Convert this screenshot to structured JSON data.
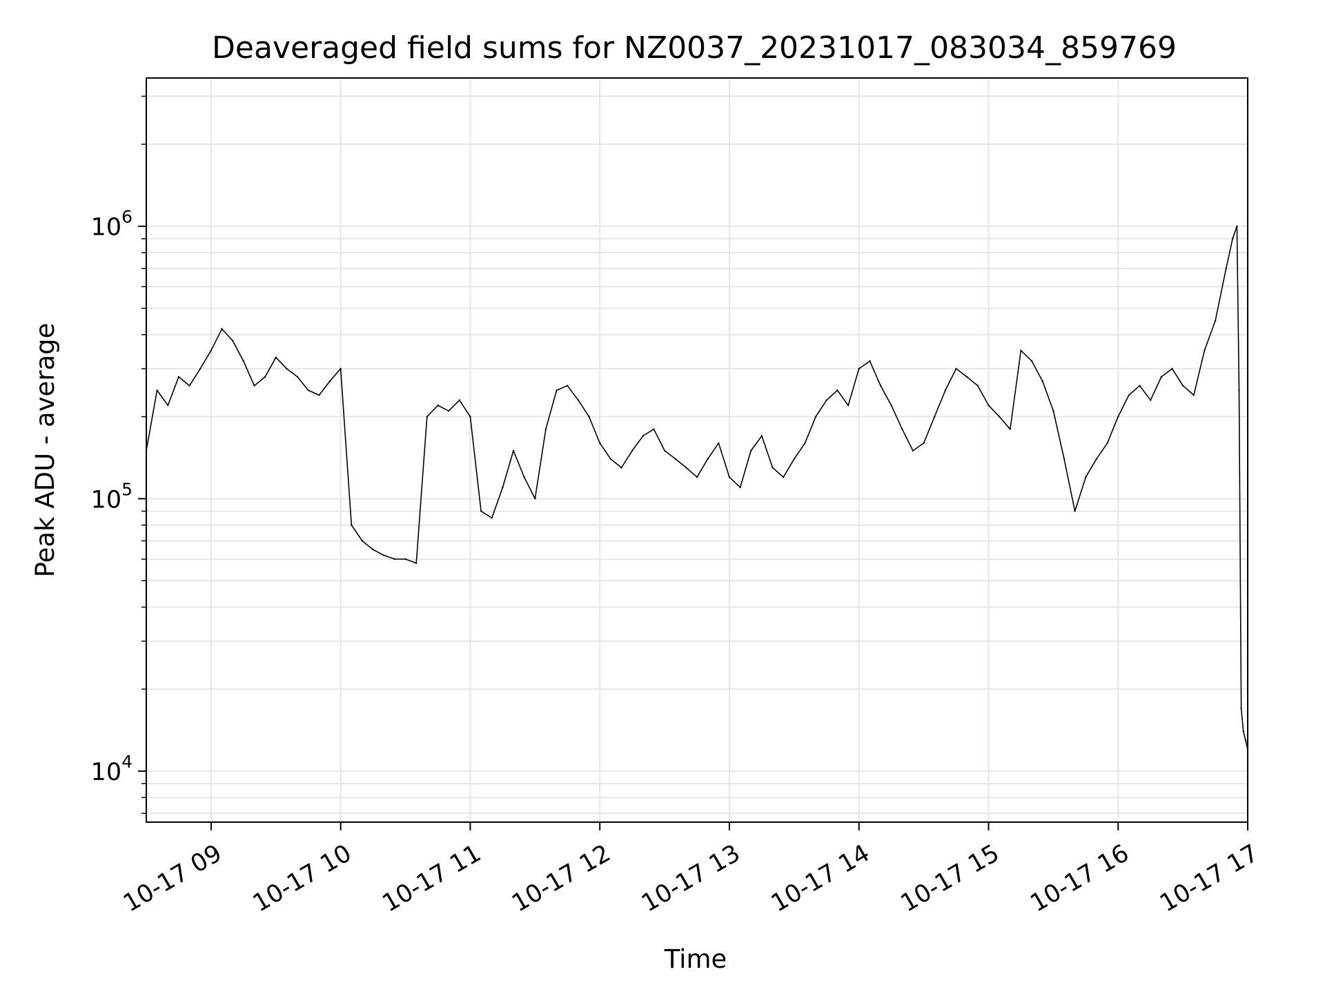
{
  "chart_data": {
    "type": "line",
    "title": "Deaveraged field sums for NZ0037_20231017_083034_859769",
    "xlabel": "Time",
    "ylabel": "Peak ADU - average",
    "y_scale": "log",
    "x_range": [
      "10-17 08:30",
      "10-17 17:00"
    ],
    "ylim": [
      6500,
      3500000
    ],
    "grid": true,
    "line_color": "#000000",
    "grid_color": "#e6e6e6",
    "x_ticks": [
      {
        "time": "09:00",
        "label": "10-17 09"
      },
      {
        "time": "10:00",
        "label": "10-17 10"
      },
      {
        "time": "11:00",
        "label": "10-17 11"
      },
      {
        "time": "12:00",
        "label": "10-17 12"
      },
      {
        "time": "13:00",
        "label": "10-17 13"
      },
      {
        "time": "14:00",
        "label": "10-17 14"
      },
      {
        "time": "15:00",
        "label": "10-17 15"
      },
      {
        "time": "16:00",
        "label": "10-17 16"
      },
      {
        "time": "17:00",
        "label": "10-17 17"
      }
    ],
    "y_ticks": [
      {
        "value": 10000,
        "base": "10",
        "exp": "4"
      },
      {
        "value": 100000,
        "base": "10",
        "exp": "5"
      },
      {
        "value": 1000000,
        "base": "10",
        "exp": "6"
      }
    ],
    "series": [
      {
        "x": [
          "08:30",
          "08:35",
          "08:40",
          "08:45",
          "08:50",
          "08:55",
          "09:00",
          "09:05",
          "09:10",
          "09:15",
          "09:20",
          "09:25",
          "09:30",
          "09:35",
          "09:40",
          "09:45",
          "09:50",
          "09:55",
          "10:00",
          "10:05",
          "10:10",
          "10:15",
          "10:20",
          "10:25",
          "10:30",
          "10:35",
          "10:40",
          "10:45",
          "10:50",
          "10:55",
          "11:00",
          "11:05",
          "11:10",
          "11:15",
          "11:20",
          "11:25",
          "11:30",
          "11:35",
          "11:40",
          "11:45",
          "11:50",
          "11:55",
          "12:00",
          "12:05",
          "12:10",
          "12:15",
          "12:20",
          "12:25",
          "12:30",
          "12:35",
          "12:40",
          "12:45",
          "12:50",
          "12:55",
          "13:00",
          "13:05",
          "13:10",
          "13:15",
          "13:20",
          "13:25",
          "13:30",
          "13:35",
          "13:40",
          "13:45",
          "13:50",
          "13:55",
          "14:00",
          "14:05",
          "14:10",
          "14:15",
          "14:20",
          "14:25",
          "14:30",
          "14:35",
          "14:40",
          "14:45",
          "14:50",
          "14:55",
          "15:00",
          "15:05",
          "15:10",
          "15:15",
          "15:20",
          "15:25",
          "15:30",
          "15:35",
          "15:40",
          "15:45",
          "15:50",
          "15:55",
          "16:00",
          "16:05",
          "16:10",
          "16:15",
          "16:20",
          "16:25",
          "16:30",
          "16:35",
          "16:40",
          "16:45",
          "16:50",
          "16:53",
          "16:55",
          "16:56",
          "16:57",
          "16:58",
          "16:59",
          "17:00"
        ],
        "values": [
          150000,
          250000,
          220000,
          280000,
          260000,
          300000,
          350000,
          420000,
          380000,
          320000,
          260000,
          280000,
          330000,
          300000,
          280000,
          250000,
          240000,
          270000,
          300000,
          80000,
          70000,
          65000,
          62000,
          60000,
          60000,
          58000,
          200000,
          220000,
          210000,
          230000,
          200000,
          90000,
          85000,
          110000,
          150000,
          120000,
          100000,
          180000,
          250000,
          260000,
          230000,
          200000,
          160000,
          140000,
          130000,
          150000,
          170000,
          180000,
          150000,
          140000,
          130000,
          120000,
          140000,
          160000,
          120000,
          110000,
          150000,
          170000,
          130000,
          120000,
          140000,
          160000,
          200000,
          230000,
          250000,
          220000,
          300000,
          320000,
          260000,
          220000,
          180000,
          150000,
          160000,
          200000,
          250000,
          300000,
          280000,
          260000,
          220000,
          200000,
          180000,
          350000,
          320000,
          270000,
          210000,
          140000,
          90000,
          120000,
          140000,
          160000,
          200000,
          240000,
          260000,
          230000,
          280000,
          300000,
          260000,
          240000,
          350000,
          450000,
          700000,
          900000,
          1000000,
          250000,
          17000,
          14000,
          13000,
          12000
        ]
      }
    ]
  }
}
